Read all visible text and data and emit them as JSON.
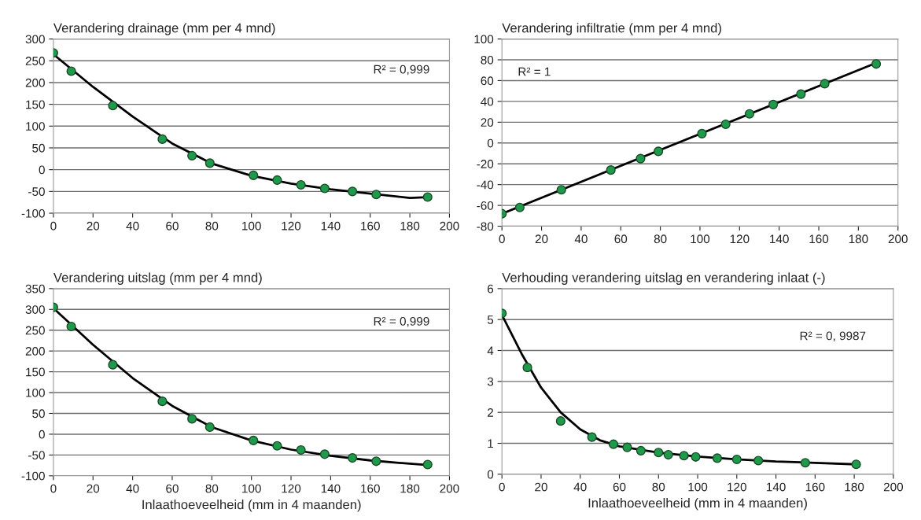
{
  "chart_data": [
    {
      "type": "scatter",
      "title": "Verandering drainage (mm per 4 mnd)",
      "annotations": [
        "R² = 0,999"
      ],
      "xlim": [
        0,
        200
      ],
      "xticks": [
        0,
        20,
        40,
        60,
        80,
        100,
        120,
        140,
        160,
        180,
        200
      ],
      "ylim": [
        -100,
        300
      ],
      "yticks": [
        -100,
        -50,
        0,
        50,
        100,
        150,
        200,
        250,
        300
      ],
      "grid": "y",
      "legend": false,
      "series": [
        {
          "marker": "circle",
          "color": "#1f9a4a",
          "x": [
            0,
            9,
            30,
            55,
            70,
            79,
            101,
            113,
            125,
            137,
            151,
            163,
            189
          ],
          "values": [
            268,
            226,
            147,
            70,
            32,
            15,
            -13,
            -24,
            -35,
            -43,
            -50,
            -57,
            -63
          ]
        },
        {
          "type": "line",
          "color": "#000000",
          "x": [
            0,
            20,
            40,
            60,
            80,
            100,
            120,
            140,
            160,
            180,
            189
          ],
          "values": [
            265,
            190,
            122,
            60,
            14,
            -14,
            -32,
            -45,
            -55,
            -65,
            -63
          ]
        }
      ]
    },
    {
      "type": "scatter",
      "title": "Verandering infiltratie (mm per 4 mnd)",
      "annotations": [
        "R² = 1"
      ],
      "xlim": [
        0,
        200
      ],
      "xticks": [
        0,
        20,
        40,
        60,
        80,
        100,
        120,
        140,
        160,
        180,
        200
      ],
      "ylim": [
        -80,
        100
      ],
      "yticks": [
        -80,
        -60,
        -40,
        -20,
        0,
        20,
        40,
        60,
        80,
        100
      ],
      "grid": "y",
      "legend": false,
      "series": [
        {
          "marker": "circle",
          "color": "#1f9a4a",
          "x": [
            0,
            9,
            30,
            55,
            70,
            79,
            101,
            113,
            125,
            137,
            151,
            163,
            189
          ],
          "values": [
            -68,
            -62,
            -45,
            -26,
            -15,
            -8,
            9,
            18,
            28,
            37,
            47,
            57,
            76
          ]
        },
        {
          "type": "line",
          "color": "#000000",
          "x": [
            0,
            189
          ],
          "values": [
            -68,
            77
          ]
        }
      ]
    },
    {
      "type": "scatter",
      "title": "Verandering uitslag (mm per 4 mnd)",
      "xlabel": "Inlaathoeveelheid (mm in 4 maanden)",
      "annotations": [
        "R² = 0,999"
      ],
      "xlim": [
        0,
        200
      ],
      "xticks": [
        0,
        20,
        40,
        60,
        80,
        100,
        120,
        140,
        160,
        180,
        200
      ],
      "ylim": [
        -100,
        350
      ],
      "yticks": [
        -100,
        -50,
        0,
        50,
        100,
        150,
        200,
        250,
        300,
        350
      ],
      "grid": "y",
      "legend": false,
      "series": [
        {
          "marker": "circle",
          "color": "#1f9a4a",
          "x": [
            0,
            9,
            30,
            55,
            70,
            79,
            101,
            113,
            125,
            137,
            151,
            163,
            189
          ],
          "values": [
            305,
            259,
            167,
            79,
            37,
            17,
            -15,
            -28,
            -38,
            -48,
            -57,
            -65,
            -73
          ]
        },
        {
          "type": "line",
          "color": "#000000",
          "x": [
            0,
            20,
            40,
            60,
            80,
            100,
            120,
            140,
            160,
            180,
            189
          ],
          "values": [
            303,
            215,
            135,
            68,
            17,
            -15,
            -37,
            -52,
            -63,
            -71,
            -74
          ]
        }
      ]
    },
    {
      "type": "scatter",
      "title": "Verhouding verandering uitslag en verandering inlaat (-)",
      "xlabel": "Inlaathoeveelheid (mm in 4 maanden)",
      "annotations": [
        "R² = 0, 9987"
      ],
      "xlim": [
        0,
        200
      ],
      "xticks": [
        0,
        20,
        40,
        60,
        80,
        100,
        120,
        140,
        160,
        180,
        200
      ],
      "ylim": [
        0,
        6
      ],
      "yticks": [
        0,
        1,
        2,
        3,
        4,
        5,
        6
      ],
      "grid": "y",
      "legend": false,
      "series": [
        {
          "marker": "circle",
          "color": "#1f9a4a",
          "x": [
            0,
            13,
            30,
            46,
            57,
            64,
            71,
            80,
            85,
            93,
            99,
            110,
            120,
            131,
            155,
            181
          ],
          "values": [
            5.2,
            3.45,
            1.72,
            1.2,
            0.97,
            0.87,
            0.76,
            0.7,
            0.63,
            0.6,
            0.56,
            0.52,
            0.48,
            0.44,
            0.37,
            0.32
          ]
        },
        {
          "type": "line",
          "color": "#000000",
          "x": [
            0,
            10,
            20,
            30,
            40,
            50,
            60,
            80,
            100,
            120,
            140,
            160,
            181
          ],
          "values": [
            5.15,
            3.9,
            2.8,
            2.0,
            1.45,
            1.1,
            0.9,
            0.7,
            0.57,
            0.48,
            0.41,
            0.37,
            0.32
          ]
        }
      ]
    }
  ]
}
